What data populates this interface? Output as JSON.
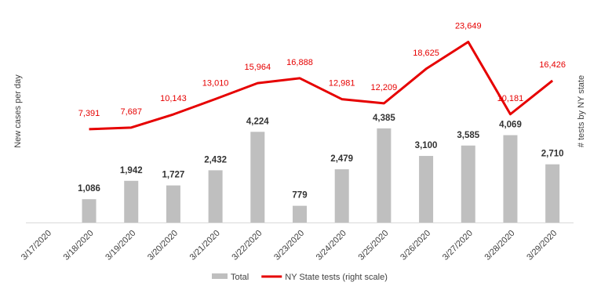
{
  "chart_data": {
    "type": "bar-line",
    "ylabel": "New cases per day",
    "y2label": "# tests by NY state",
    "categories": [
      "3/17/2020",
      "3/18/2020",
      "3/19/2020",
      "3/20/2020",
      "3/21/2020",
      "3/22/2020",
      "3/23/2020",
      "3/24/2020",
      "3/25/2020",
      "3/26/2020",
      "3/27/2020",
      "3/28/2020",
      "3/29/2020"
    ],
    "series": [
      {
        "name": "Total",
        "type": "bar",
        "color": "#bfbfbf",
        "values": [
          null,
          1086,
          1942,
          1727,
          2432,
          4224,
          779,
          2479,
          4385,
          3100,
          3585,
          4069,
          2710
        ],
        "value_labels": [
          null,
          "1,086",
          "1,942",
          "1,727",
          "2,432",
          "4,224",
          "779",
          "2,479",
          "4,385",
          "3,100",
          "3,585",
          "4,069",
          "2,710"
        ]
      },
      {
        "name": "NY State tests (right scale)",
        "type": "line",
        "color": "#e60000",
        "axis": "y2",
        "values": [
          null,
          7391,
          7687,
          10143,
          13010,
          15964,
          16888,
          12981,
          12209,
          18625,
          23649,
          10181,
          16426
        ],
        "value_labels": [
          null,
          "7,391",
          "7,687",
          "10,143",
          "13,010",
          "15,964",
          "16,888",
          "12,981",
          "12,209",
          "18,625",
          "23,649",
          "10,181",
          "16,426"
        ]
      }
    ],
    "ylim": [
      0,
      10000
    ],
    "y2lim": [
      -10000,
      30000
    ],
    "legend": "bottom"
  }
}
